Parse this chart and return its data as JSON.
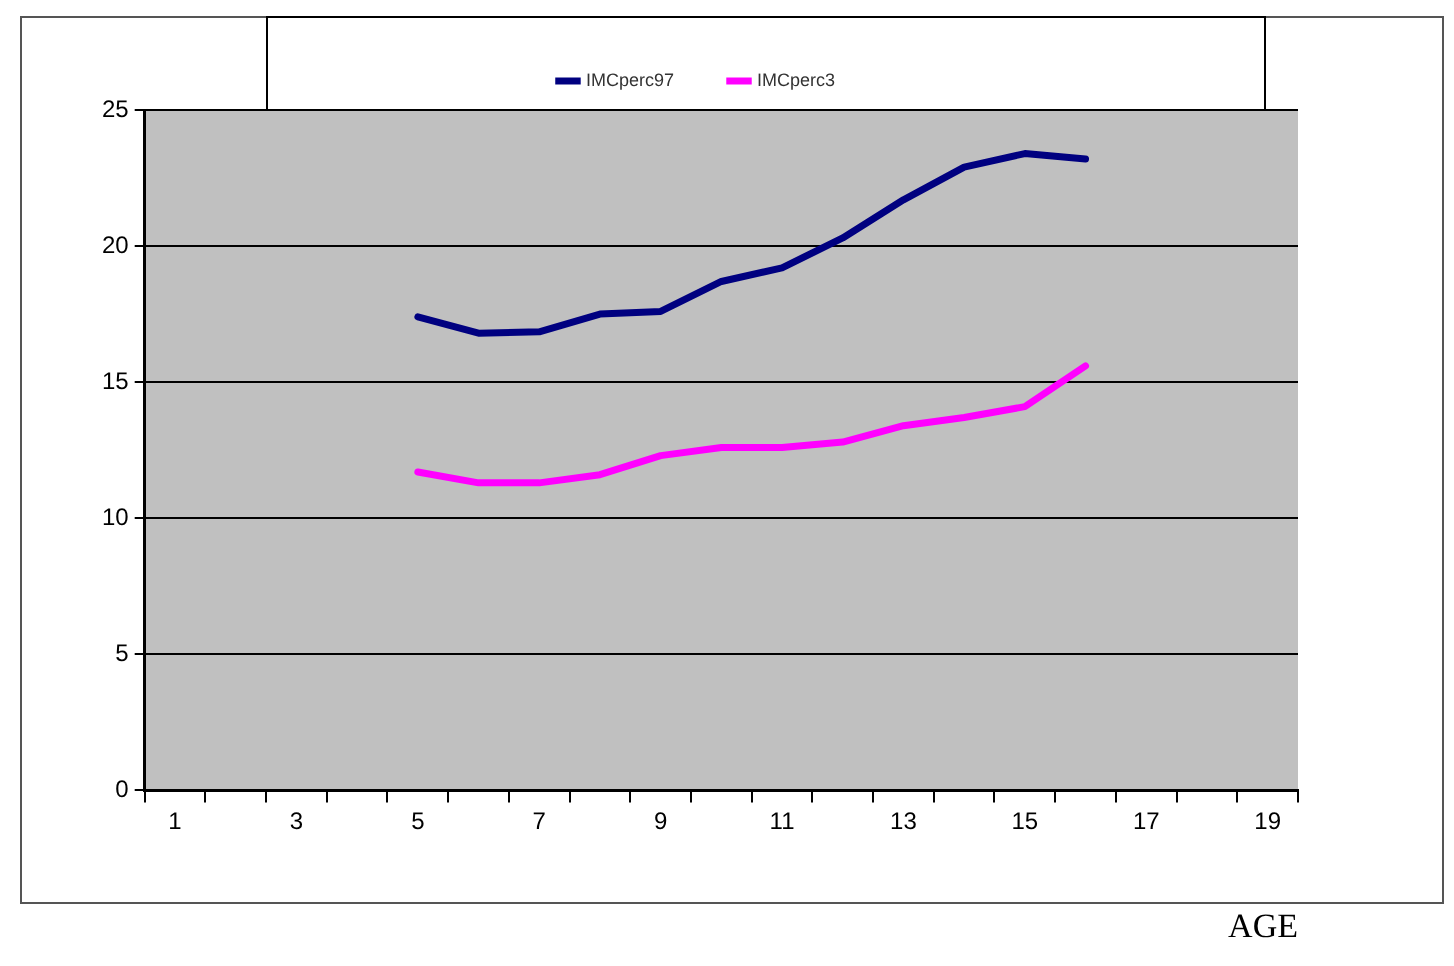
{
  "chart_data": {
    "type": "line",
    "xlabel": "AGE",
    "x": [
      5,
      6,
      7,
      8,
      9,
      10,
      11,
      12,
      13,
      14,
      15,
      16
    ],
    "series": [
      {
        "name": "IMCperc97",
        "color": "#000080",
        "values": [
          17.4,
          16.8,
          16.85,
          17.5,
          17.6,
          18.7,
          19.2,
          20.3,
          21.7,
          22.9,
          23.4,
          23.2
        ]
      },
      {
        "name": "IMCperc3",
        "color": "#ff00ff",
        "values": [
          11.7,
          11.3,
          11.3,
          11.6,
          12.3,
          12.6,
          12.6,
          12.8,
          13.4,
          13.7,
          14.1,
          15.6
        ]
      }
    ],
    "xlim": [
      0.5,
      19.5
    ],
    "xticks": [
      {
        "value": 0.5,
        "label": null
      },
      1,
      {
        "value": 1.5,
        "label": null
      },
      {
        "value": 2.5,
        "label": null
      },
      3,
      {
        "value": 3.5,
        "label": null
      },
      {
        "value": 4.5,
        "label": null
      },
      5,
      {
        "value": 5.5,
        "label": null
      },
      {
        "value": 6.5,
        "label": null
      },
      7,
      {
        "value": 7.5,
        "label": null
      },
      {
        "value": 8.5,
        "label": null
      },
      9,
      {
        "value": 9.5,
        "label": null
      },
      {
        "value": 10.5,
        "label": null
      },
      11,
      {
        "value": 11.5,
        "label": null
      },
      {
        "value": 12.5,
        "label": null
      },
      13,
      {
        "value": 13.5,
        "label": null
      },
      {
        "value": 14.5,
        "label": null
      },
      15,
      {
        "value": 15.5,
        "label": null
      },
      {
        "value": 16.5,
        "label": null
      },
      17,
      {
        "value": 17.5,
        "label": null
      },
      {
        "value": 18.5,
        "label": null
      },
      19,
      {
        "value": 19.5,
        "label": null
      }
    ],
    "ylim": [
      0,
      25
    ],
    "yticks": [
      0,
      5,
      10,
      15,
      20,
      25
    ],
    "grid": "y",
    "legend": "top",
    "marker": "none",
    "line_style": "solid"
  }
}
